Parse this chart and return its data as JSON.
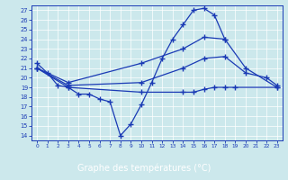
{
  "title": "Graphe des températures (°C)",
  "bg_color": "#cce8ec",
  "line_color": "#1a3ab5",
  "bar_color": "#1a3ab5",
  "bar_text_color": "#ffffff",
  "xlim": [
    -0.5,
    23.5
  ],
  "ylim": [
    13.5,
    27.5
  ],
  "xticks": [
    0,
    1,
    2,
    3,
    4,
    5,
    6,
    7,
    8,
    9,
    10,
    11,
    12,
    13,
    14,
    15,
    16,
    17,
    18,
    19,
    20,
    21,
    22,
    23
  ],
  "yticks": [
    14,
    15,
    16,
    17,
    18,
    19,
    20,
    21,
    22,
    23,
    24,
    25,
    26,
    27
  ],
  "series": [
    {
      "x": [
        0,
        1,
        2,
        3,
        4,
        5,
        6,
        7,
        8,
        9,
        10,
        11,
        12,
        13,
        14,
        15,
        16,
        17,
        18
      ],
      "y": [
        21.5,
        20.5,
        19.2,
        19.0,
        18.3,
        18.3,
        17.8,
        17.5,
        14.0,
        15.2,
        17.2,
        19.5,
        22.0,
        24.0,
        25.5,
        27.0,
        27.2,
        26.5,
        24.0
      ]
    },
    {
      "x": [
        0,
        3,
        10,
        14,
        15,
        16,
        17,
        18,
        19,
        23
      ],
      "y": [
        21.0,
        19.0,
        18.5,
        18.5,
        18.5,
        18.8,
        19.0,
        19.0,
        19.0,
        19.0
      ]
    },
    {
      "x": [
        0,
        3,
        10,
        14,
        16,
        18,
        20,
        22,
        23
      ],
      "y": [
        21.0,
        19.2,
        19.5,
        21.0,
        22.0,
        22.2,
        20.5,
        20.0,
        19.2
      ]
    },
    {
      "x": [
        0,
        3,
        10,
        14,
        16,
        18,
        20,
        23
      ],
      "y": [
        21.0,
        19.5,
        21.5,
        23.0,
        24.2,
        24.0,
        21.0,
        19.0
      ]
    }
  ]
}
